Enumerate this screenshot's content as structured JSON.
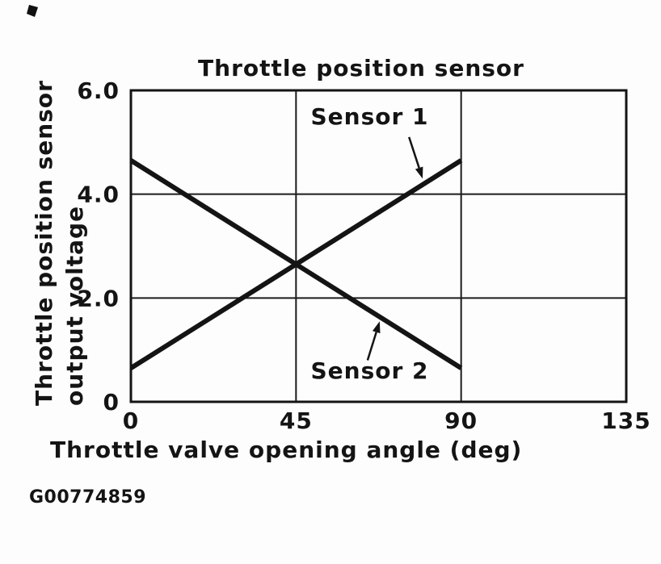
{
  "figure_id": "G00774859",
  "chart_data": {
    "type": "line",
    "title": "Throttle position sensor",
    "xlabel": "Throttle valve opening angle (deg)",
    "ylabel": "Throttle position sensor output voltage",
    "ylabel_lines": [
      "Throttle position sensor",
      "output voltage"
    ],
    "xlim": [
      0,
      135
    ],
    "ylim": [
      0,
      6
    ],
    "xticks": [
      0,
      45,
      90,
      135
    ],
    "xtick_labels": [
      "0",
      "45",
      "90",
      "135"
    ],
    "yticks": [
      0,
      2,
      4,
      6
    ],
    "ytick_labels": [
      "0",
      "2.0",
      "4.0",
      "6.0"
    ],
    "grid": true,
    "grid_x": [
      45,
      90
    ],
    "grid_y": [
      2.0,
      4.0
    ],
    "legend_position": "none",
    "line_color": "#141414",
    "series": [
      {
        "name": "Sensor 1",
        "x": [
          0,
          90
        ],
        "y": [
          0.65,
          4.65
        ]
      },
      {
        "name": "Sensor 2",
        "x": [
          0,
          90
        ],
        "y": [
          4.65,
          0.65
        ]
      }
    ],
    "annotations": [
      {
        "label": "Sensor 1",
        "text_at": [
          49,
          5.35
        ],
        "arrow_from": [
          75.8,
          5.1
        ],
        "arrow_to": [
          79.5,
          4.3
        ]
      },
      {
        "label": "Sensor 2",
        "text_at": [
          49,
          0.45
        ],
        "arrow_from": [
          64.5,
          0.8
        ],
        "arrow_to": [
          67.8,
          1.55
        ]
      }
    ]
  }
}
